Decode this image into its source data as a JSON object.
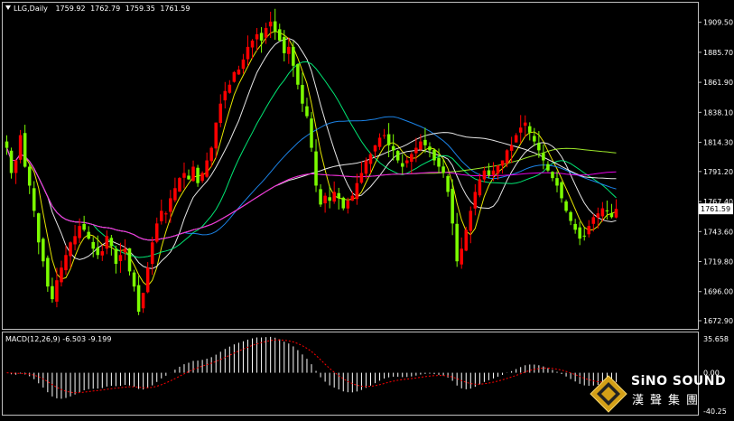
{
  "chart_header": {
    "symbol": "LLG,Daily",
    "open": "1759.92",
    "high": "1762.79",
    "low": "1759.35",
    "close": "1761.59"
  },
  "price_axis": {
    "labels": [
      "1909.50",
      "1885.70",
      "1861.90",
      "1838.10",
      "1814.30",
      "1791.20",
      "1767.40",
      "1743.60",
      "1719.80",
      "1696.00",
      "1672.90"
    ],
    "current_price": "1761.59"
  },
  "macd": {
    "title": "MACD(12,26,9) -6.503 -9.199",
    "axis_labels": [
      "35.658",
      "0.00",
      "-40.25"
    ]
  },
  "logo": {
    "name_en": "SiNO SOUND",
    "name_cn": "漢聲集團"
  },
  "colors": {
    "bull_candle": "#ff0000",
    "bear_candle": "#7cfc00",
    "ma_fast": "#ffff00",
    "ma_mid": "#00ff7f",
    "ma_slow": "#1e90ff",
    "ma_white": "#ffffff",
    "ma_purple": "#ff00ff",
    "ma_lime": "#adff2f",
    "macd_hist": "#ffffff",
    "macd_signal": "#ff0000"
  },
  "chart_data": {
    "type": "candlestick",
    "symbol": "LLG",
    "timeframe": "Daily",
    "ylim": [
      1672.9,
      1920
    ],
    "closes": [
      1810,
      1790,
      1800,
      1820,
      1795,
      1780,
      1760,
      1735,
      1720,
      1700,
      1690,
      1705,
      1715,
      1725,
      1735,
      1740,
      1748,
      1745,
      1738,
      1730,
      1725,
      1728,
      1740,
      1732,
      1718,
      1725,
      1730,
      1712,
      1700,
      1680,
      1695,
      1715,
      1735,
      1750,
      1760,
      1758,
      1770,
      1778,
      1786,
      1790,
      1785,
      1795,
      1782,
      1790,
      1800,
      1810,
      1830,
      1845,
      1855,
      1860,
      1870,
      1872,
      1880,
      1890,
      1895,
      1900,
      1895,
      1905,
      1910,
      1902,
      1895,
      1885,
      1890,
      1875,
      1860,
      1845,
      1835,
      1810,
      1780,
      1765,
      1772,
      1768,
      1775,
      1770,
      1762,
      1768,
      1772,
      1782,
      1790,
      1800,
      1805,
      1812,
      1818,
      1820,
      1812,
      1808,
      1800,
      1795,
      1800,
      1805,
      1810,
      1815,
      1812,
      1808,
      1800,
      1795,
      1790,
      1775,
      1750,
      1720,
      1730,
      1745,
      1760,
      1775,
      1785,
      1792,
      1788,
      1792,
      1796,
      1800,
      1808,
      1812,
      1820,
      1826,
      1830,
      1822,
      1815,
      1808,
      1800,
      1792,
      1786,
      1780,
      1770,
      1760,
      1752,
      1745,
      1738,
      1740,
      1748,
      1755,
      1758,
      1762,
      1760,
      1755,
      1761.59
    ],
    "macd": {
      "line": -6.503,
      "signal": -9.199,
      "ylim": [
        -40.25,
        35.658
      ]
    }
  }
}
